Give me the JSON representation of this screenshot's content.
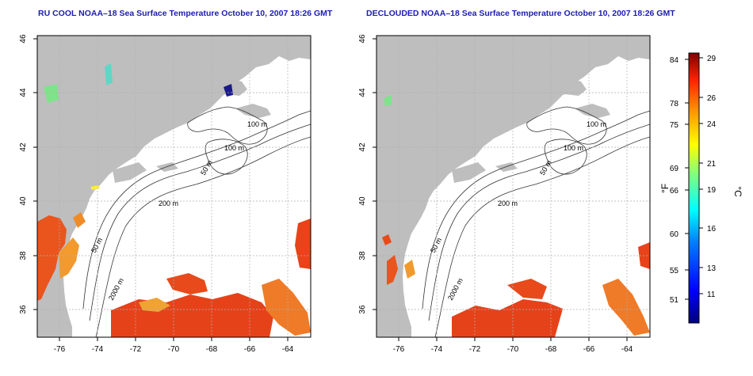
{
  "maps": [
    {
      "title": "RU COOL NOAA–18 Sea Surface Temperature October 10, 2007 18:26 GMT",
      "x_ticks": [
        "-76",
        "-74",
        "-72",
        "-70",
        "-68",
        "-66",
        "-64"
      ],
      "y_ticks": [
        "36",
        "38",
        "40",
        "42",
        "44",
        "46"
      ],
      "contour_labels": [
        "100 m",
        "100 m",
        "50 m",
        "200 m",
        "50 m",
        "2000 m"
      ]
    },
    {
      "title": "DECLOUDED NOAA–18 Sea Surface Temperature October 10, 2007 18:26 GMT",
      "x_ticks": [
        "-76",
        "-74",
        "-72",
        "-70",
        "-68",
        "-66",
        "-64"
      ],
      "y_ticks": [
        "36",
        "38",
        "40",
        "42",
        "44",
        "46"
      ],
      "contour_labels": [
        "100 m",
        "100 m",
        "50 m",
        "200 m",
        "50 m",
        "2000 m"
      ]
    }
  ],
  "colorbar": {
    "fahrenheit_unit": "°F",
    "celsius_unit": "°C",
    "fahrenheit_ticks": [
      "84",
      "78",
      "75",
      "69",
      "66",
      "60",
      "55",
      "51"
    ],
    "celsius_ticks": [
      "29",
      "26",
      "24",
      "21",
      "19",
      "16",
      "13",
      "11"
    ],
    "colors": [
      "#00007f",
      "#0000ff",
      "#007fff",
      "#00ffff",
      "#7fff7f",
      "#ffff00",
      "#ff7f00",
      "#ff0000",
      "#7f0000"
    ]
  }
}
